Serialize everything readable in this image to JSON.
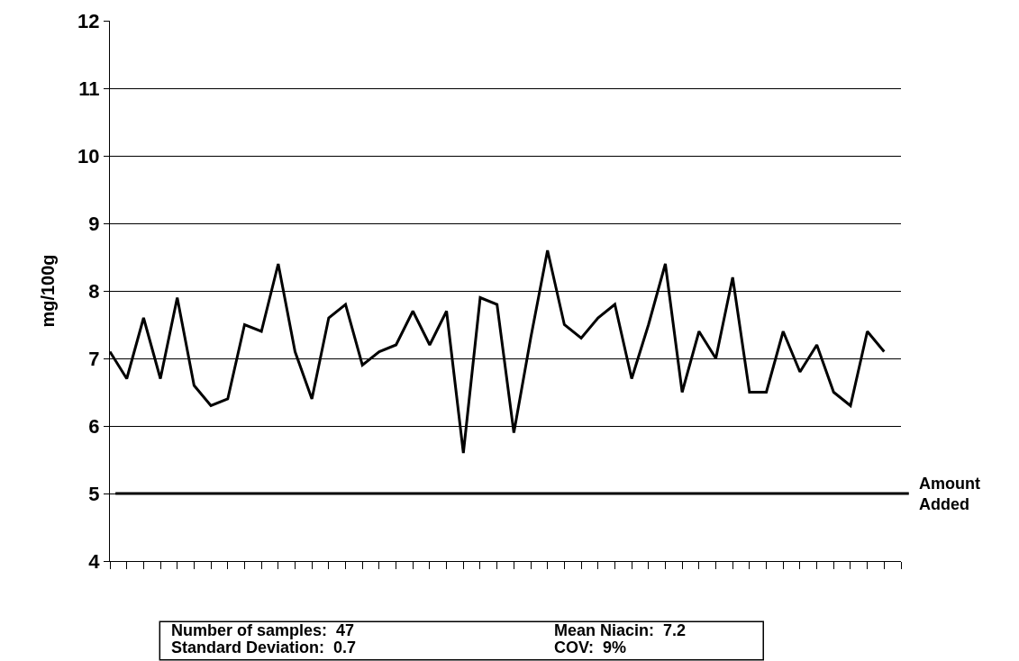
{
  "chart_data": {
    "type": "line",
    "ylabel": "mg/100g",
    "categories": [
      null,
      null,
      null,
      null,
      null,
      null,
      null,
      null,
      null,
      null,
      null,
      null,
      null,
      null,
      null,
      null,
      null,
      null,
      null,
      null,
      null,
      null,
      null,
      null,
      null,
      null,
      null,
      null,
      null,
      null,
      null,
      null,
      null,
      null,
      null,
      null,
      null,
      null,
      null,
      null,
      null,
      null,
      null,
      null,
      null,
      null,
      null
    ],
    "series": [
      {
        "color": "#000000",
        "values": [
          7.1,
          6.7,
          7.6,
          6.7,
          7.9,
          6.6,
          6.3,
          6.4,
          7.5,
          7.4,
          8.4,
          7.1,
          6.4,
          7.6,
          7.8,
          6.9,
          7.1,
          7.2,
          7.7,
          7.2,
          7.7,
          5.6,
          7.9,
          7.8,
          5.9,
          7.3,
          8.6,
          7.5,
          7.3,
          7.6,
          7.8,
          6.7,
          7.5,
          8.4,
          6.5,
          7.4,
          7.0,
          8.2,
          6.5,
          6.5,
          7.4,
          6.8,
          7.2,
          6.5,
          6.3,
          7.4,
          7.1
        ]
      }
    ],
    "ylim": [
      4,
      12
    ],
    "yticks": [
      4,
      5,
      6,
      7,
      8,
      9,
      10,
      11,
      12
    ],
    "grid": "y",
    "marker": "none",
    "line_style": "solid",
    "tick_labels": "y",
    "ref_lines": [
      {
        "axis": "y",
        "value": 5,
        "label": "Amount Added",
        "color": "#000000"
      }
    ],
    "annotations": [
      "Number of samples:  47",
      "Standard Deviation:  0.7",
      "Mean Niacin:  7.2",
      "COV:  9%"
    ]
  }
}
